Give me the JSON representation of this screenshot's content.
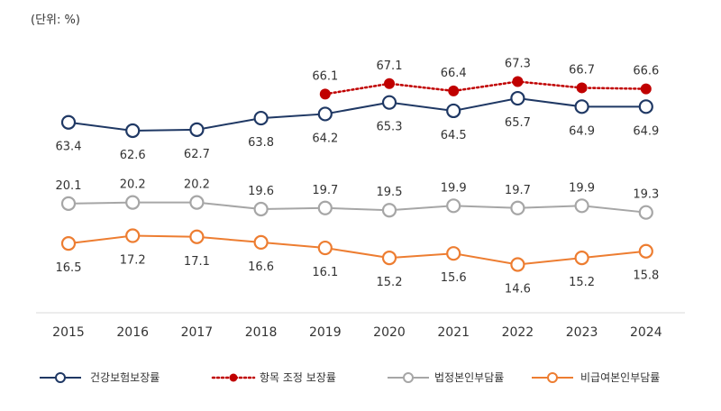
{
  "chart_data": {
    "type": "line",
    "unit_label": "(단위: %)",
    "categories": [
      "2015",
      "2016",
      "2017",
      "2018",
      "2019",
      "2020",
      "2021",
      "2022",
      "2023",
      "2024"
    ],
    "series": [
      {
        "name": "건강보험보장률",
        "color": "#1f3864",
        "style": "solid",
        "marker": "open-circle",
        "values": [
          63.4,
          62.6,
          62.7,
          63.8,
          64.2,
          65.3,
          64.5,
          65.7,
          64.9,
          64.9
        ],
        "labels": [
          "63.4",
          "62.6",
          "62.7",
          "63.8",
          "64.2",
          "65.3",
          "64.5",
          "65.7",
          "64.9",
          "64.9"
        ],
        "label_position": "below"
      },
      {
        "name": "항목 조정 보장률",
        "color": "#c00000",
        "style": "dotted",
        "marker": "filled-circle",
        "values": [
          null,
          null,
          null,
          null,
          66.1,
          67.1,
          66.4,
          67.3,
          66.7,
          66.6
        ],
        "labels": [
          "",
          "",
          "",
          "",
          "66.1",
          "67.1",
          "66.4",
          "67.3",
          "66.7",
          "66.6"
        ],
        "label_position": "above"
      },
      {
        "name": "법정본인부담률",
        "color": "#a6a6a6",
        "style": "solid",
        "marker": "open-circle",
        "values": [
          20.1,
          20.2,
          20.2,
          19.6,
          19.7,
          19.5,
          19.9,
          19.7,
          19.9,
          19.3
        ],
        "labels": [
          "20.1",
          "20.2",
          "20.2",
          "19.6",
          "19.7",
          "19.5",
          "19.9",
          "19.7",
          "19.9",
          "19.3"
        ],
        "label_position": "above"
      },
      {
        "name": "비급여본인부담률",
        "color": "#ed7d31",
        "style": "solid",
        "marker": "open-circle",
        "values": [
          16.5,
          17.2,
          17.1,
          16.6,
          16.1,
          15.2,
          15.6,
          14.6,
          15.2,
          15.8
        ],
        "labels": [
          "16.5",
          "17.2",
          "17.1",
          "16.6",
          "16.1",
          "15.2",
          "15.6",
          "14.6",
          "15.2",
          "15.8"
        ],
        "label_position": "below"
      }
    ],
    "legend_position": "bottom",
    "grid": false
  }
}
